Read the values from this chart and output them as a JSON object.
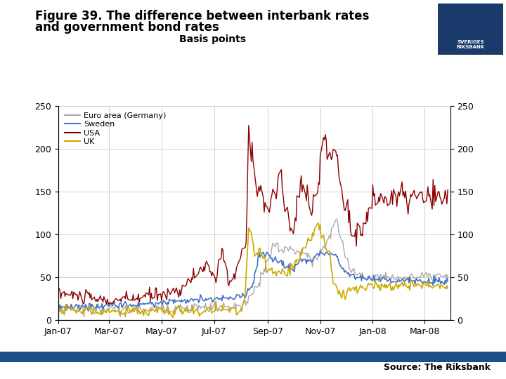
{
  "title_line1": "Figure 39. The difference between interbank rates",
  "title_line2": "and government bond rates",
  "subtitle": "Basis points",
  "source": "Source: The Riksbank",
  "background_color": "#ffffff",
  "plot_bg_color": "#ffffff",
  "ylim": [
    0,
    250
  ],
  "yticks": [
    0,
    50,
    100,
    150,
    200,
    250
  ],
  "series_labels": [
    "Euro area (Germany)",
    "Sweden",
    "USA",
    "UK"
  ],
  "series_colors": [
    "#aaaaaa",
    "#4472c4",
    "#8b0000",
    "#ccaa00"
  ],
  "series_linewidths": [
    1.0,
    1.2,
    1.0,
    1.2
  ],
  "footer_bar_color": "#1a4f8a",
  "logo_box_color": "#1a3a6b"
}
